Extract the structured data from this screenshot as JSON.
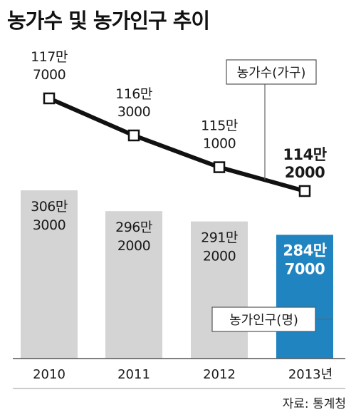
{
  "title": "농가수 및 농가인구 추이",
  "source": "자료: 통계청",
  "colors": {
    "bar": "#d4d4d4",
    "bar_highlight": "#1f84c0",
    "line": "#111111",
    "marker_fill": "#ffffff",
    "highlight_text": "#ffffff",
    "text": "#1a1a1a",
    "axis": "#555555"
  },
  "chart_data": [
    {
      "type": "bar",
      "categories": [
        "2010",
        "2011",
        "2012",
        "2013년"
      ],
      "series": [
        {
          "name": "농가인구(명)",
          "values": [
            3063000,
            2962000,
            2912000,
            2847000
          ]
        }
      ],
      "labels": [
        [
          "306만",
          "3000"
        ],
        [
          "296만",
          "2000"
        ],
        [
          "291만",
          "2000"
        ],
        [
          "284만",
          "7000"
        ]
      ],
      "legend": "농가인구(명)",
      "highlight_index": 3
    },
    {
      "type": "line",
      "categories": [
        "2010",
        "2011",
        "2012",
        "2013년"
      ],
      "series": [
        {
          "name": "농가수(가구)",
          "values": [
            1177000,
            1163000,
            1151000,
            1142000
          ]
        }
      ],
      "labels": [
        [
          "117만",
          "7000"
        ],
        [
          "116만",
          "3000"
        ],
        [
          "115만",
          "1000"
        ],
        [
          "114만",
          "2000"
        ]
      ],
      "legend": "농가수(가구)",
      "highlight_index": 3
    }
  ]
}
